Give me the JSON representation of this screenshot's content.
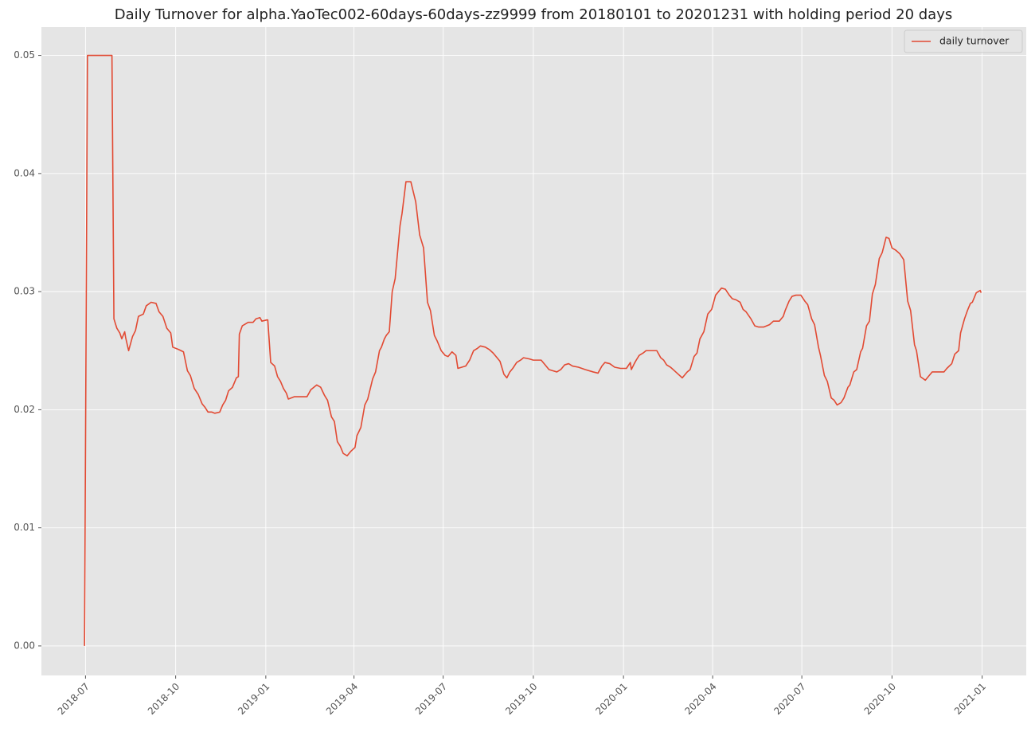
{
  "chart_data": {
    "type": "line",
    "title": "Daily Turnover for alpha.YaoTec002-60days-60days-zz9999 from 20180101 to 20201231 with holding period 20 days",
    "x": [
      "2018-06-30",
      "2018-07-03",
      "2018-07-28",
      "2018-07-30",
      "2018-08-02",
      "2018-08-05",
      "2018-08-07",
      "2018-08-10",
      "2018-08-11",
      "2018-08-14",
      "2018-08-18",
      "2018-08-21",
      "2018-08-24",
      "2018-08-29",
      "2018-09-01",
      "2018-09-06",
      "2018-09-11",
      "2018-09-14",
      "2018-09-18",
      "2018-09-22",
      "2018-09-26",
      "2018-09-28",
      "2018-10-04",
      "2018-10-09",
      "2018-10-13",
      "2018-10-16",
      "2018-10-20",
      "2018-10-24",
      "2018-10-28",
      "2018-10-31",
      "2018-11-03",
      "2018-11-07",
      "2018-11-10",
      "2018-11-15",
      "2018-11-18",
      "2018-11-21",
      "2018-11-24",
      "2018-11-28",
      "2018-12-02",
      "2018-12-04",
      "2018-12-05",
      "2018-12-08",
      "2018-12-14",
      "2018-12-19",
      "2018-12-22",
      "2018-12-26",
      "2018-12-28",
      "2019-01-02",
      "2019-01-03",
      "2019-01-06",
      "2019-01-10",
      "2019-01-13",
      "2019-01-16",
      "2019-01-19",
      "2019-01-22",
      "2019-01-24",
      "2019-01-30",
      "2019-02-05",
      "2019-02-12",
      "2019-02-16",
      "2019-02-22",
      "2019-02-26",
      "2019-03-02",
      "2019-03-05",
      "2019-03-09",
      "2019-03-12",
      "2019-03-15",
      "2019-03-18",
      "2019-03-21",
      "2019-03-25",
      "2019-03-29",
      "2019-04-02",
      "2019-04-04",
      "2019-04-08",
      "2019-04-12",
      "2019-04-15",
      "2019-04-20",
      "2019-04-23",
      "2019-04-27",
      "2019-04-29",
      "2019-05-02",
      "2019-05-04",
      "2019-05-07",
      "2019-05-10",
      "2019-05-13",
      "2019-05-18",
      "2019-05-20",
      "2019-05-24",
      "2019-05-29",
      "2019-06-03",
      "2019-06-07",
      "2019-06-11",
      "2019-06-15",
      "2019-06-18",
      "2019-06-22",
      "2019-06-25",
      "2019-06-29",
      "2019-07-03",
      "2019-07-06",
      "2019-07-10",
      "2019-07-14",
      "2019-07-16",
      "2019-07-24",
      "2019-07-28",
      "2019-08-01",
      "2019-08-05",
      "2019-08-08",
      "2019-08-13",
      "2019-08-17",
      "2019-08-21",
      "2019-08-25",
      "2019-08-28",
      "2019-09-01",
      "2019-09-04",
      "2019-09-07",
      "2019-09-10",
      "2019-09-14",
      "2019-09-18",
      "2019-09-21",
      "2019-09-27",
      "2019-10-01",
      "2019-10-09",
      "2019-10-13",
      "2019-10-17",
      "2019-10-21",
      "2019-10-25",
      "2019-10-29",
      "2019-11-02",
      "2019-11-06",
      "2019-11-10",
      "2019-11-16",
      "2019-11-23",
      "2019-12-01",
      "2019-12-06",
      "2019-12-10",
      "2019-12-13",
      "2019-12-18",
      "2019-12-23",
      "2019-12-29",
      "2020-01-04",
      "2020-01-08",
      "2020-01-09",
      "2020-01-12",
      "2020-01-14",
      "2020-01-17",
      "2020-01-21",
      "2020-01-24",
      "2020-02-04",
      "2020-02-08",
      "2020-02-11",
      "2020-02-14",
      "2020-02-18",
      "2020-02-22",
      "2020-02-26",
      "2020-03-01",
      "2020-03-06",
      "2020-03-09",
      "2020-03-13",
      "2020-03-16",
      "2020-03-19",
      "2020-03-23",
      "2020-03-27",
      "2020-03-31",
      "2020-04-04",
      "2020-04-07",
      "2020-04-10",
      "2020-04-14",
      "2020-04-18",
      "2020-04-21",
      "2020-04-25",
      "2020-04-29",
      "2020-05-02",
      "2020-05-05",
      "2020-05-10",
      "2020-05-14",
      "2020-05-18",
      "2020-05-23",
      "2020-05-29",
      "2020-06-02",
      "2020-06-08",
      "2020-06-12",
      "2020-06-14",
      "2020-06-18",
      "2020-06-21",
      "2020-06-25",
      "2020-06-30",
      "2020-07-04",
      "2020-07-07",
      "2020-07-11",
      "2020-07-14",
      "2020-07-18",
      "2020-07-20",
      "2020-07-24",
      "2020-07-27",
      "2020-07-31",
      "2020-08-03",
      "2020-08-06",
      "2020-08-10",
      "2020-08-13",
      "2020-08-17",
      "2020-08-19",
      "2020-08-23",
      "2020-08-26",
      "2020-08-30",
      "2020-09-01",
      "2020-09-05",
      "2020-09-08",
      "2020-09-11",
      "2020-09-14",
      "2020-09-18",
      "2020-09-21",
      "2020-09-25",
      "2020-09-28",
      "2020-10-01",
      "2020-10-05",
      "2020-10-09",
      "2020-10-13",
      "2020-10-17",
      "2020-10-20",
      "2020-10-24",
      "2020-10-26",
      "2020-10-30",
      "2020-11-04",
      "2020-11-08",
      "2020-11-11",
      "2020-11-18",
      "2020-11-23",
      "2020-11-26",
      "2020-12-01",
      "2020-12-04",
      "2020-12-08",
      "2020-12-10",
      "2020-12-14",
      "2020-12-17",
      "2020-12-20",
      "2020-12-22",
      "2020-12-26",
      "2020-12-30",
      "2020-12-31"
    ],
    "series": [
      {
        "name": "daily turnover",
        "color": "#e24a33",
        "values": [
          0,
          0.05,
          0.05,
          0.0277,
          0.0269,
          0.0265,
          0.026,
          0.0266,
          0.0261,
          0.025,
          0.0262,
          0.0267,
          0.0279,
          0.0281,
          0.0288,
          0.0291,
          0.029,
          0.0283,
          0.0279,
          0.0269,
          0.0265,
          0.0253,
          0.0251,
          0.0249,
          0.0233,
          0.0229,
          0.0218,
          0.0213,
          0.0205,
          0.0202,
          0.0198,
          0.0198,
          0.0197,
          0.0198,
          0.0204,
          0.0208,
          0.0216,
          0.0219,
          0.0227,
          0.0228,
          0.0264,
          0.0271,
          0.0274,
          0.0274,
          0.0277,
          0.0278,
          0.0275,
          0.0276,
          0.0276,
          0.024,
          0.0237,
          0.0228,
          0.0224,
          0.0218,
          0.0214,
          0.0209,
          0.0211,
          0.0211,
          0.0211,
          0.0217,
          0.0221,
          0.0219,
          0.0212,
          0.0208,
          0.0194,
          0.019,
          0.0173,
          0.0169,
          0.0163,
          0.0161,
          0.0165,
          0.0168,
          0.0178,
          0.0185,
          0.0204,
          0.0209,
          0.0226,
          0.0232,
          0.025,
          0.0253,
          0.026,
          0.0263,
          0.0266,
          0.03,
          0.0311,
          0.0356,
          0.0366,
          0.0393,
          0.0393,
          0.0376,
          0.0348,
          0.0337,
          0.0291,
          0.0284,
          0.0263,
          0.0258,
          0.025,
          0.0246,
          0.0245,
          0.0249,
          0.0246,
          0.0235,
          0.0237,
          0.0242,
          0.025,
          0.0252,
          0.0254,
          0.0253,
          0.0251,
          0.0248,
          0.0244,
          0.0241,
          0.023,
          0.0227,
          0.0232,
          0.0235,
          0.024,
          0.0242,
          0.0244,
          0.0243,
          0.0242,
          0.0242,
          0.0238,
          0.0234,
          0.0233,
          0.0232,
          0.0234,
          0.0238,
          0.0239,
          0.0237,
          0.0236,
          0.0234,
          0.0232,
          0.0231,
          0.0237,
          0.024,
          0.0239,
          0.0236,
          0.0235,
          0.0235,
          0.024,
          0.0234,
          0.0239,
          0.0242,
          0.0246,
          0.0248,
          0.025,
          0.025,
          0.0244,
          0.0242,
          0.0238,
          0.0236,
          0.0233,
          0.023,
          0.0227,
          0.0232,
          0.0234,
          0.0245,
          0.0248,
          0.026,
          0.0266,
          0.0281,
          0.0285,
          0.0297,
          0.03,
          0.0303,
          0.0302,
          0.0297,
          0.0294,
          0.0293,
          0.0291,
          0.0285,
          0.0283,
          0.0277,
          0.0271,
          0.027,
          0.027,
          0.0272,
          0.0275,
          0.0275,
          0.0279,
          0.0284,
          0.0292,
          0.0296,
          0.0297,
          0.0297,
          0.0292,
          0.0289,
          0.0277,
          0.0272,
          0.0253,
          0.0246,
          0.0229,
          0.0224,
          0.021,
          0.0208,
          0.0204,
          0.0206,
          0.021,
          0.0219,
          0.0221,
          0.0232,
          0.0234,
          0.0249,
          0.0252,
          0.0271,
          0.0275,
          0.0298,
          0.0306,
          0.0328,
          0.0333,
          0.0346,
          0.0345,
          0.0337,
          0.0335,
          0.0332,
          0.0327,
          0.0292,
          0.0284,
          0.0255,
          0.025,
          0.0228,
          0.0225,
          0.0229,
          0.0232,
          0.0232,
          0.0232,
          0.0235,
          0.0239,
          0.0247,
          0.025,
          0.0265,
          0.0277,
          0.0284,
          0.029,
          0.0291,
          0.0299,
          0.0301,
          0.0299
        ]
      }
    ],
    "xlim": [
      "2018-05-17",
      "2021-02-15"
    ],
    "xticks": [
      {
        "value": "2018-07-01",
        "label": "2018-07"
      },
      {
        "value": "2018-10-01",
        "label": "2018-10"
      },
      {
        "value": "2019-01-01",
        "label": "2019-01"
      },
      {
        "value": "2019-04-01",
        "label": "2019-04"
      },
      {
        "value": "2019-07-01",
        "label": "2019-07"
      },
      {
        "value": "2019-10-01",
        "label": "2019-10"
      },
      {
        "value": "2020-01-01",
        "label": "2020-01"
      },
      {
        "value": "2020-04-01",
        "label": "2020-04"
      },
      {
        "value": "2020-07-01",
        "label": "2020-07"
      },
      {
        "value": "2020-10-01",
        "label": "2020-10"
      },
      {
        "value": "2021-01-01",
        "label": "2021-01"
      }
    ],
    "ylim": [
      -0.0025,
      0.0524
    ],
    "yticks": [
      {
        "value": 0,
        "label": "0.00"
      },
      {
        "value": 0.01,
        "label": "0.01"
      },
      {
        "value": 0.02,
        "label": "0.02"
      },
      {
        "value": 0.03,
        "label": "0.03"
      },
      {
        "value": 0.04,
        "label": "0.04"
      },
      {
        "value": 0.05,
        "label": "0.05"
      }
    ],
    "grid": true,
    "legend": "upper right"
  }
}
